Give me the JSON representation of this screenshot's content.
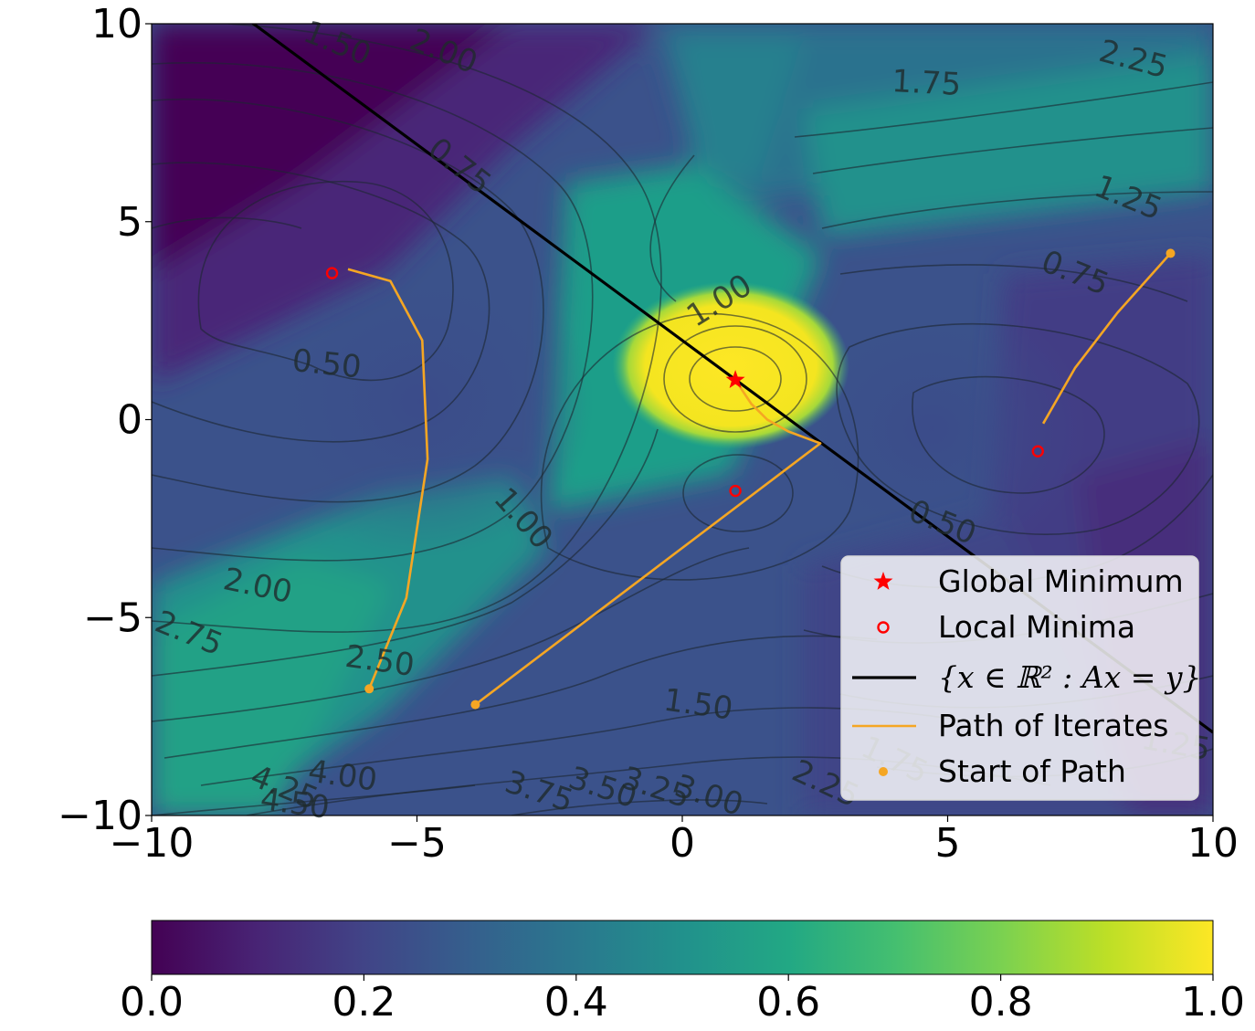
{
  "chart_data": {
    "type": "heatmap",
    "title": "",
    "xlabel": "",
    "ylabel": "",
    "xlim": [
      -10,
      10
    ],
    "ylim": [
      -10,
      10
    ],
    "x_ticks": [
      -10,
      -5,
      0,
      5,
      10
    ],
    "y_ticks": [
      -10,
      -5,
      0,
      5,
      10
    ],
    "x_tick_labels": [
      "−10",
      "−5",
      "0",
      "5",
      "10"
    ],
    "y_tick_labels": [
      "−10",
      "−5",
      "0",
      "5",
      "10"
    ],
    "colormap": "viridis",
    "colorbar": {
      "orientation": "horizontal",
      "range": [
        0.0,
        1.0
      ],
      "ticks": [
        0.0,
        0.2,
        0.4,
        0.6,
        0.8,
        1.0
      ],
      "tick_labels": [
        "0.0",
        "0.2",
        "0.4",
        "0.6",
        "0.8",
        "1.0"
      ]
    },
    "contour_labels": [
      {
        "text": "1.50",
        "x": -6.5,
        "y": 9.5,
        "rotation": 22
      },
      {
        "text": "2.00",
        "x": -4.5,
        "y": 9.3,
        "rotation": 22
      },
      {
        "text": "1.75",
        "x": 4.6,
        "y": 8.5,
        "rotation": 3
      },
      {
        "text": "2.25",
        "x": 8.5,
        "y": 9.1,
        "rotation": 15
      },
      {
        "text": "0.75",
        "x": -4.2,
        "y": 6.4,
        "rotation": 38
      },
      {
        "text": "1.25",
        "x": 8.4,
        "y": 5.6,
        "rotation": 22
      },
      {
        "text": "0.75",
        "x": 7.4,
        "y": 3.7,
        "rotation": 22
      },
      {
        "text": "1.00",
        "x": 0.7,
        "y": 3.0,
        "rotation": -32
      },
      {
        "text": "0.50",
        "x": -6.7,
        "y": 1.4,
        "rotation": 6
      },
      {
        "text": "1.00",
        "x": -3.0,
        "y": -2.5,
        "rotation": 48
      },
      {
        "text": "0.50",
        "x": 4.9,
        "y": -2.6,
        "rotation": 22
      },
      {
        "text": "2.00",
        "x": -8.0,
        "y": -4.2,
        "rotation": 12
      },
      {
        "text": "2.75",
        "x": -9.3,
        "y": -5.4,
        "rotation": 22
      },
      {
        "text": "2.50",
        "x": -5.7,
        "y": -6.1,
        "rotation": 8
      },
      {
        "text": "1.50",
        "x": 0.3,
        "y": -7.2,
        "rotation": 8
      },
      {
        "text": "1.75",
        "x": 4.0,
        "y": -8.6,
        "rotation": 25
      },
      {
        "text": "1.25",
        "x": 9.3,
        "y": -8.2,
        "rotation": 10
      },
      {
        "text": "4.25",
        "x": -7.5,
        "y": -9.3,
        "rotation": 22
      },
      {
        "text": "4.00",
        "x": -6.4,
        "y": -9.0,
        "rotation": 8
      },
      {
        "text": "4.50",
        "x": -7.3,
        "y": -9.7,
        "rotation": 8
      },
      {
        "text": "3.75",
        "x": -2.7,
        "y": -9.4,
        "rotation": 18
      },
      {
        "text": "3.50",
        "x": -1.5,
        "y": -9.3,
        "rotation": 18
      },
      {
        "text": "3.25",
        "x": -0.5,
        "y": -9.3,
        "rotation": 18
      },
      {
        "text": "3.00",
        "x": 0.5,
        "y": -9.5,
        "rotation": 18
      },
      {
        "text": "2.25",
        "x": 2.7,
        "y": -9.2,
        "rotation": 25
      }
    ],
    "constraint_line": {
      "label": "{x ∈ ℝ² : Ax = y}",
      "x": [
        -10,
        10
      ],
      "y": [
        11.9,
        -7.9
      ],
      "color": "#000000"
    },
    "global_minimum": {
      "label": "Global Minimum",
      "x": 1.0,
      "y": 1.0,
      "color": "#ff0000"
    },
    "local_minima": {
      "label": "Local Minima",
      "points": [
        [
          -6.6,
          3.7
        ],
        [
          1.0,
          -1.8
        ],
        [
          6.7,
          -0.8
        ]
      ],
      "color": "#ff0000"
    },
    "paths": {
      "label": "Path of Iterates",
      "color": "#f5a623",
      "series": [
        {
          "x": [
            -5.9,
            -5.2,
            -4.8,
            -4.9,
            -5.5,
            -6.3
          ],
          "y": [
            -6.8,
            -4.5,
            -1.0,
            2.0,
            3.5,
            3.8
          ]
        },
        {
          "x": [
            -3.9,
            2.6,
            2.0,
            1.6,
            1.3,
            1.0
          ],
          "y": [
            -7.2,
            -0.6,
            -0.3,
            0.0,
            0.4,
            1.0
          ]
        },
        {
          "x": [
            9.2,
            8.2,
            7.4,
            6.8
          ],
          "y": [
            4.2,
            2.7,
            1.3,
            -0.1
          ]
        }
      ]
    },
    "path_starts": {
      "label": "Start of Path",
      "points": [
        [
          -5.9,
          -6.8
        ],
        [
          -3.9,
          -7.2
        ],
        [
          9.2,
          4.2
        ]
      ],
      "color": "#f5a623"
    },
    "legend": {
      "position": "lower right",
      "entries": [
        "Global Minimum",
        "Local Minima",
        "{x ∈ ℝ² : Ax = y}",
        "Path of Iterates",
        "Start of Path"
      ]
    }
  }
}
